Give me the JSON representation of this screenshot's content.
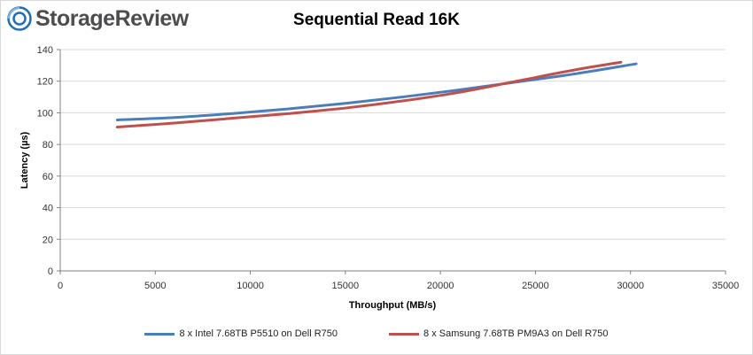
{
  "branding": {
    "name": "StorageReview",
    "logo_color": "#1f6fb2"
  },
  "chart_data": {
    "type": "line",
    "title": "Sequential Read 16K",
    "xlabel": "Throughput (MB/s)",
    "ylabel": "Latency (µs)",
    "xlim": [
      0,
      35000
    ],
    "ylim": [
      0,
      140
    ],
    "xticks": [
      0,
      5000,
      10000,
      15000,
      20000,
      25000,
      30000,
      35000
    ],
    "yticks": [
      0,
      20,
      40,
      60,
      80,
      100,
      120,
      140
    ],
    "grid": "horizontal",
    "legend_position": "bottom",
    "series": [
      {
        "name": "8 x Intel 7.68TB P5510 on Dell R750",
        "color": "#4a7ebb",
        "x": [
          3000,
          6000,
          9000,
          12000,
          15000,
          18000,
          21000,
          24000,
          27000,
          30300
        ],
        "y": [
          95.5,
          97,
          99.5,
          102.5,
          106,
          110,
          114.5,
          119.5,
          124.5,
          131
        ]
      },
      {
        "name": "8 x Samsung 7.68TB PM9A3 on Dell R750",
        "color": "#c0504d",
        "x": [
          3000,
          6000,
          9000,
          12000,
          15000,
          18000,
          21000,
          24000,
          27000,
          29500
        ],
        "y": [
          91,
          93.5,
          96.5,
          99.5,
          103,
          107.5,
          113,
          120,
          127,
          132
        ]
      }
    ]
  }
}
